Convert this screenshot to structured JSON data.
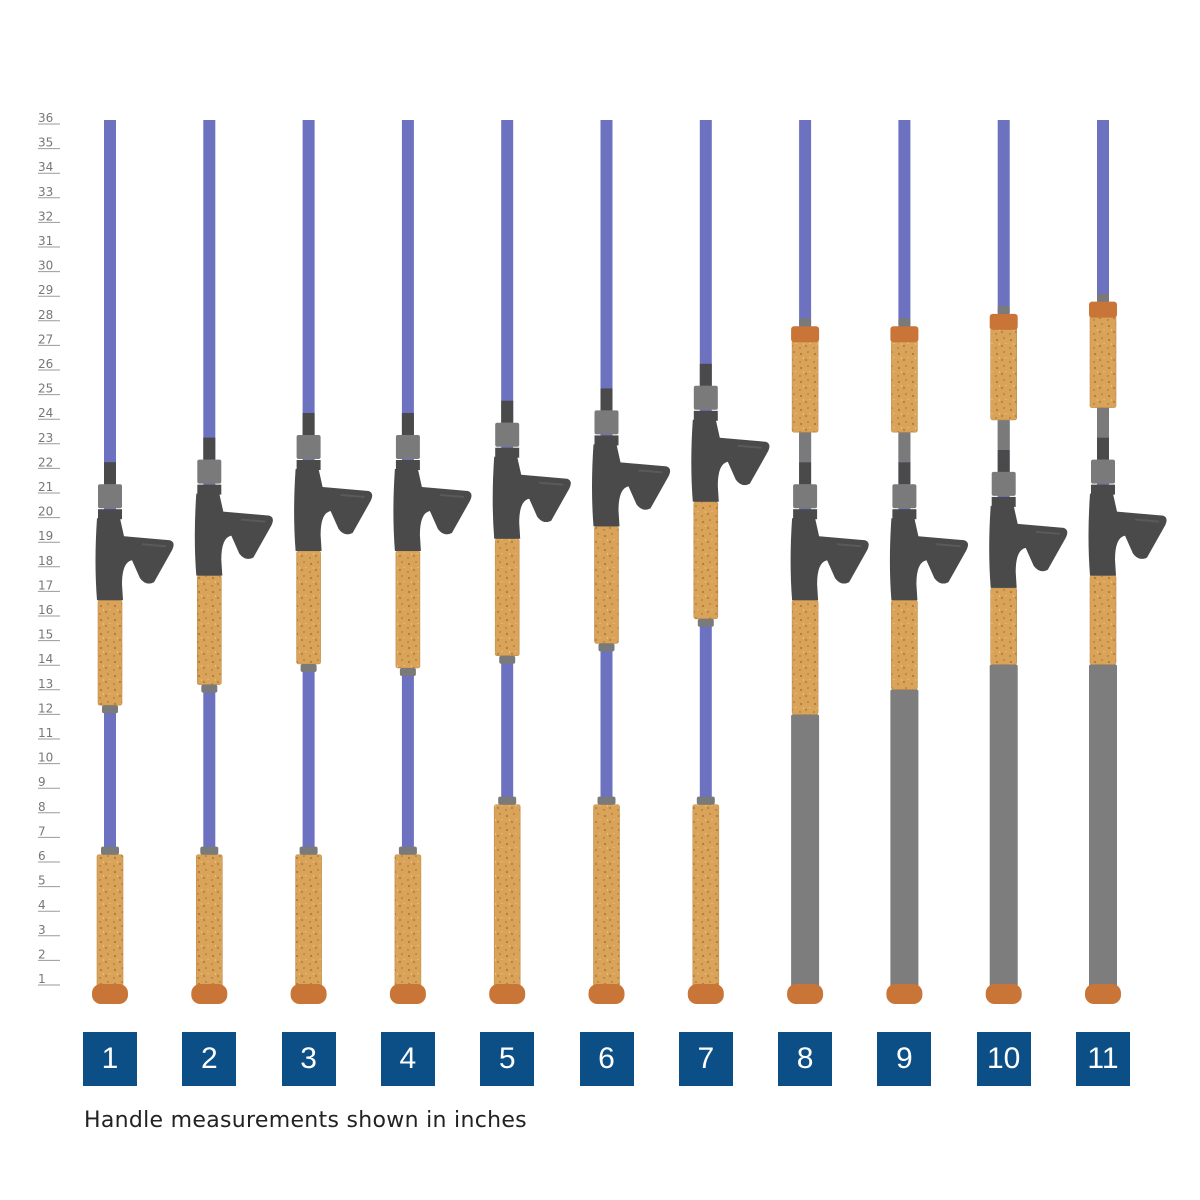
{
  "ruler": {
    "unit": "inches",
    "ticks": [
      1,
      2,
      3,
      4,
      5,
      6,
      7,
      8,
      9,
      10,
      11,
      12,
      13,
      14,
      15,
      16,
      17,
      18,
      19,
      20,
      21,
      22,
      23,
      24,
      25,
      26,
      27,
      28,
      29,
      30,
      31,
      32,
      33,
      34,
      35,
      36
    ]
  },
  "rods": [
    {
      "label": "1",
      "reel_seat_in": 19.0,
      "handle_type": "split-cork",
      "butt_material": "cork"
    },
    {
      "label": "2",
      "reel_seat_in": 20.0,
      "handle_type": "split-cork",
      "butt_material": "cork"
    },
    {
      "label": "3",
      "reel_seat_in": 21.0,
      "handle_type": "split-cork",
      "butt_material": "cork"
    },
    {
      "label": "4",
      "reel_seat_in": 21.0,
      "handle_type": "split-cork",
      "butt_material": "cork"
    },
    {
      "label": "5",
      "reel_seat_in": 21.5,
      "handle_type": "split-cork",
      "butt_material": "cork"
    },
    {
      "label": "6",
      "reel_seat_in": 22.0,
      "handle_type": "split-cork",
      "butt_material": "cork"
    },
    {
      "label": "7",
      "reel_seat_in": 23.0,
      "handle_type": "split-cork",
      "butt_material": "cork"
    },
    {
      "label": "8",
      "reel_seat_in": 19.0,
      "handle_type": "full-rear",
      "butt_material": "gray"
    },
    {
      "label": "9",
      "reel_seat_in": 19.0,
      "handle_type": "full-rear",
      "butt_material": "gray"
    },
    {
      "label": "10",
      "reel_seat_in": 19.5,
      "handle_type": "full-rear",
      "butt_material": "gray"
    },
    {
      "label": "11",
      "reel_seat_in": 20.0,
      "handle_type": "full-rear",
      "butt_material": "gray"
    }
  ],
  "caption": "Handle measurements shown in inches",
  "colors": {
    "blank": "#6c72c0",
    "cork": "#d9a35a",
    "cork_accent": "#c97537",
    "reel_seat": "#4a4a4a",
    "hardware": "#7a7a7a",
    "gray_butt": "#7d7d7d",
    "label_bg": "#0c4f86"
  }
}
